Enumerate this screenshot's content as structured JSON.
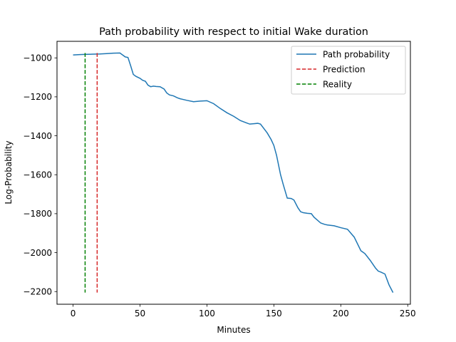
{
  "chart_data": {
    "type": "line",
    "title": "Path probability with respect to initial Wake duration",
    "xlabel": "Minutes",
    "ylabel": "Log-Probability",
    "xlim": [
      -12,
      252
    ],
    "ylim": [
      -2265,
      -915
    ],
    "xticks": [
      0,
      50,
      100,
      150,
      200,
      250
    ],
    "xtick_labels": [
      "0",
      "50",
      "100",
      "150",
      "200",
      "250"
    ],
    "yticks": [
      -1000,
      -1200,
      -1400,
      -1600,
      -1800,
      -2000,
      -2200
    ],
    "ytick_labels": [
      "−1000",
      "−1200",
      "−1400",
      "−1600",
      "−1800",
      "−2000",
      "−2200"
    ],
    "grid": false,
    "legend": {
      "position": "upper-right"
    },
    "series": [
      {
        "name": "Path probability",
        "color": "#1f77b4",
        "style": "solid",
        "x": [
          0,
          5,
          10,
          15,
          20,
          25,
          30,
          35,
          37,
          39,
          41,
          43,
          45,
          47,
          50,
          52,
          54,
          56,
          58,
          60,
          62,
          65,
          68,
          70,
          72,
          75,
          78,
          80,
          85,
          90,
          95,
          100,
          105,
          110,
          115,
          120,
          125,
          130,
          132,
          135,
          138,
          140,
          145,
          148,
          150,
          152,
          155,
          157,
          160,
          163,
          165,
          168,
          170,
          172,
          175,
          178,
          180,
          185,
          188,
          190,
          195,
          200,
          205,
          210,
          215,
          218,
          222,
          224,
          226,
          228,
          230,
          233,
          236,
          239
        ],
        "y": [
          -985,
          -983,
          -982,
          -981,
          -980,
          -978,
          -976,
          -975,
          -985,
          -995,
          -998,
          -1040,
          -1085,
          -1095,
          -1105,
          -1115,
          -1120,
          -1140,
          -1148,
          -1145,
          -1147,
          -1148,
          -1160,
          -1180,
          -1190,
          -1195,
          -1205,
          -1210,
          -1218,
          -1225,
          -1222,
          -1220,
          -1235,
          -1260,
          -1282,
          -1300,
          -1322,
          -1335,
          -1340,
          -1338,
          -1336,
          -1340,
          -1385,
          -1420,
          -1450,
          -1500,
          -1600,
          -1650,
          -1720,
          -1722,
          -1730,
          -1770,
          -1790,
          -1795,
          -1798,
          -1800,
          -1818,
          -1848,
          -1855,
          -1858,
          -1862,
          -1872,
          -1880,
          -1920,
          -1990,
          -2005,
          -2040,
          -2060,
          -2080,
          -2095,
          -2100,
          -2110,
          -2165,
          -2205
        ]
      },
      {
        "name": "Prediction",
        "color": "#d62728",
        "style": "dashed",
        "x": [
          18,
          18
        ],
        "y": [
          -975,
          -2205
        ]
      },
      {
        "name": "Reality",
        "color": "#008000",
        "style": "dashed",
        "x": [
          9,
          9
        ],
        "y": [
          -975,
          -2205
        ]
      }
    ]
  }
}
